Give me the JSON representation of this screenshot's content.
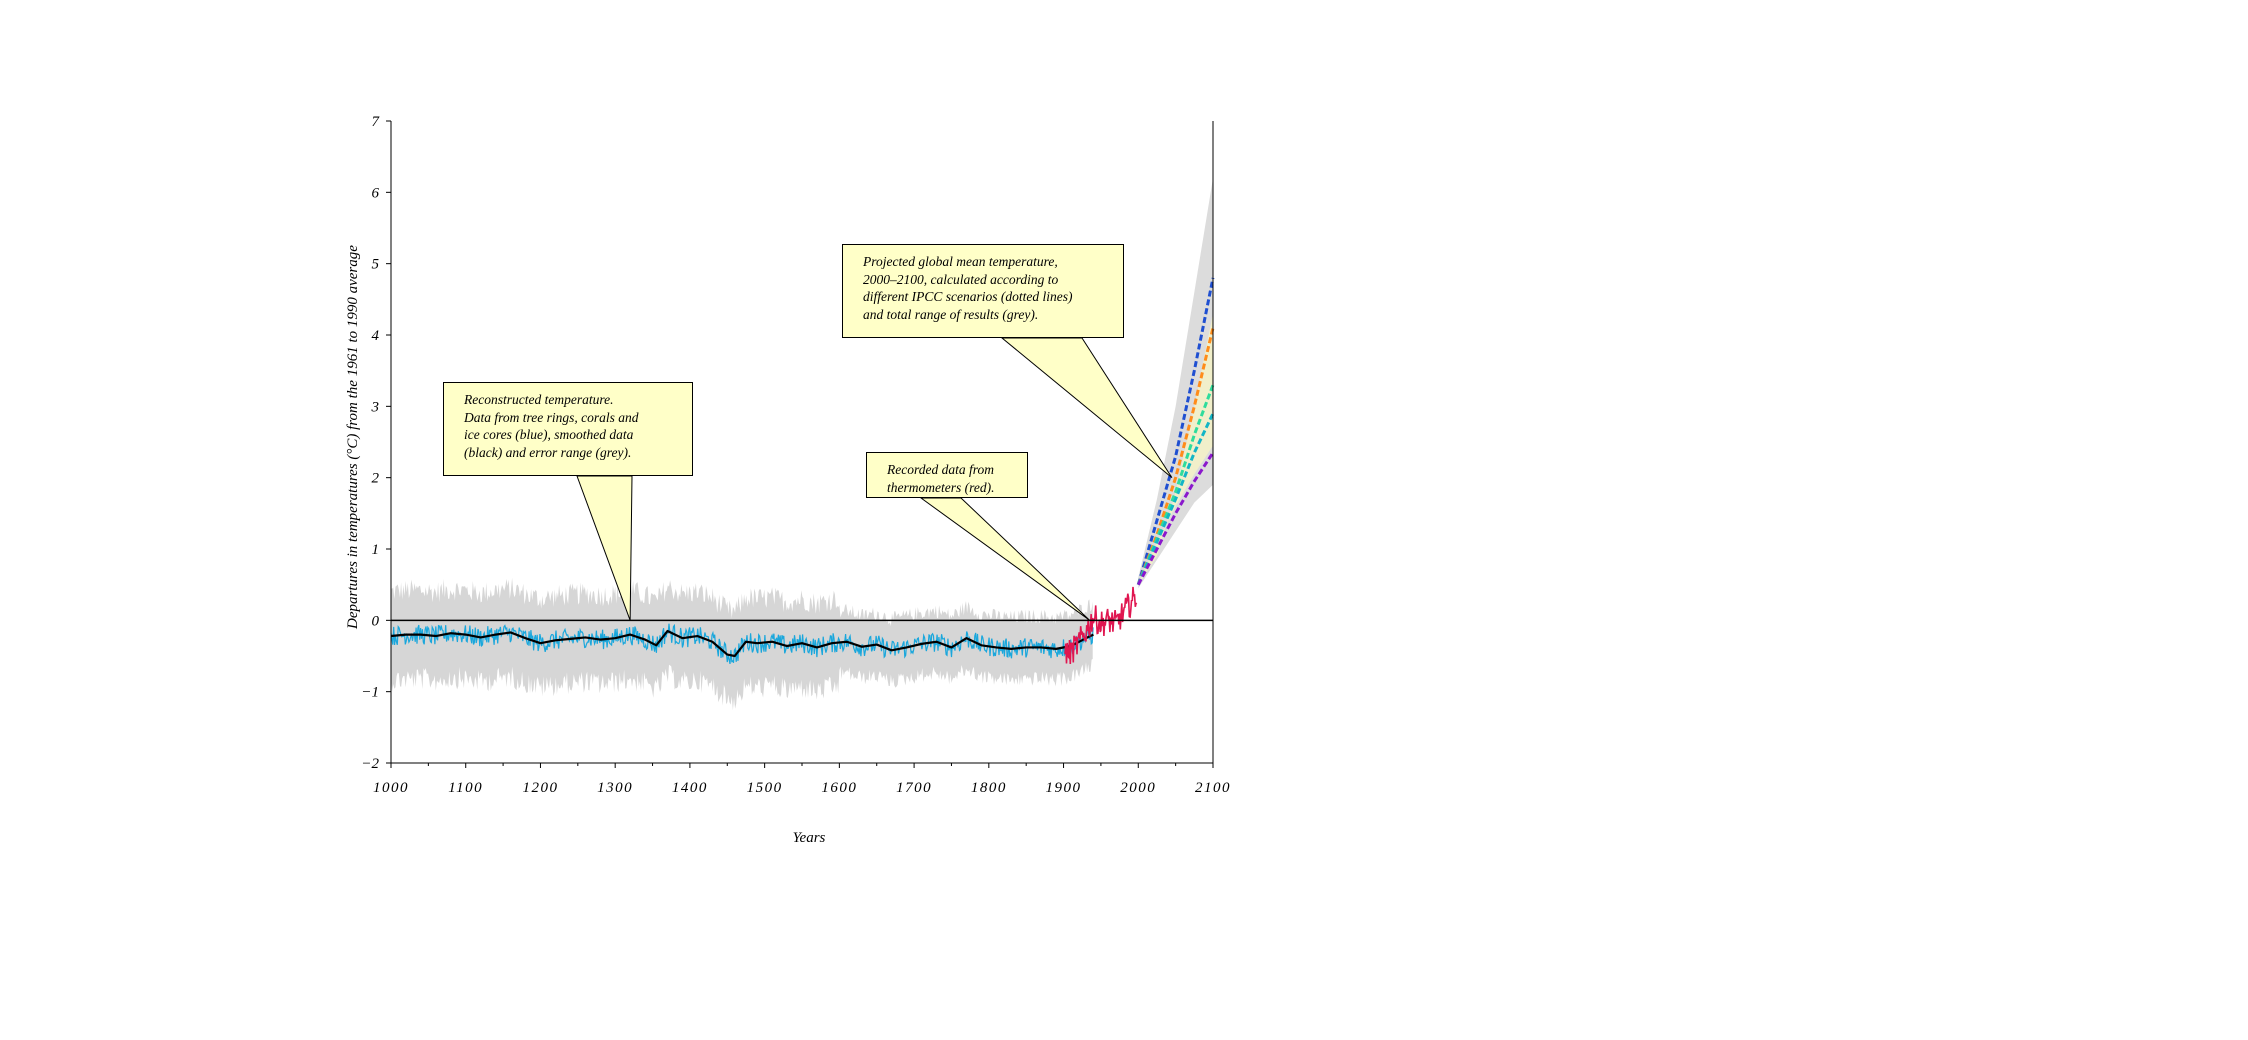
{
  "chart_data": {
    "type": "line",
    "xlabel": "Years",
    "ylabel": "Departures in temperatures (°C) from the 1961 to 1990 average",
    "xlim": [
      1000,
      2100
    ],
    "ylim": [
      -2,
      7
    ],
    "x_ticks": [
      "1000",
      "1100",
      "1200",
      "1300",
      "1400",
      "1500",
      "1600",
      "1700",
      "1800",
      "1900",
      "2000",
      "2100"
    ],
    "y_ticks": [
      "−2",
      "−1",
      "0",
      "1",
      "2",
      "3",
      "4",
      "5",
      "6",
      "7"
    ],
    "grid": false,
    "zero_line": true,
    "colors": {
      "reconstructed": "#1aa7dc",
      "smoothed": "#000000",
      "reconstruction_error": "#d6d6d6",
      "recorded": "#e01650",
      "projection_range": "#dcdcdc",
      "projection_inner": "#f3f1c8",
      "scenarios": [
        "#1f4fd1",
        "#ff8c1a",
        "#2edc9c",
        "#12b5c6",
        "#8a18cc"
      ]
    },
    "series": [
      {
        "role": "smoothed",
        "x": [
          1000,
          1020,
          1040,
          1060,
          1080,
          1100,
          1120,
          1140,
          1160,
          1180,
          1200,
          1220,
          1240,
          1260,
          1280,
          1300,
          1320,
          1340,
          1355,
          1370,
          1390,
          1410,
          1430,
          1450,
          1460,
          1475,
          1490,
          1510,
          1530,
          1550,
          1570,
          1590,
          1610,
          1630,
          1650,
          1670,
          1690,
          1710,
          1730,
          1750,
          1770,
          1790,
          1810,
          1830,
          1850,
          1870,
          1890,
          1910,
          1930,
          1940
        ],
        "y": [
          -0.22,
          -0.2,
          -0.2,
          -0.22,
          -0.18,
          -0.2,
          -0.24,
          -0.2,
          -0.17,
          -0.25,
          -0.32,
          -0.28,
          -0.26,
          -0.24,
          -0.27,
          -0.25,
          -0.2,
          -0.27,
          -0.35,
          -0.15,
          -0.25,
          -0.22,
          -0.3,
          -0.48,
          -0.5,
          -0.3,
          -0.32,
          -0.3,
          -0.36,
          -0.32,
          -0.38,
          -0.32,
          -0.3,
          -0.37,
          -0.34,
          -0.42,
          -0.38,
          -0.33,
          -0.3,
          -0.38,
          -0.25,
          -0.35,
          -0.38,
          -0.4,
          -0.38,
          -0.38,
          -0.4,
          -0.36,
          -0.25,
          -0.2
        ]
      },
      {
        "role": "recorded",
        "x": [
          1902,
          1910,
          1920,
          1930,
          1940,
          1950,
          1960,
          1970,
          1980,
          1990,
          1998
        ],
        "y": [
          -0.45,
          -0.45,
          -0.32,
          -0.15,
          0.05,
          -0.05,
          0.0,
          -0.05,
          0.1,
          0.25,
          0.35
        ]
      },
      {
        "role": "scenario",
        "x": [
          2000,
          2025,
          2050,
          2075,
          2100
        ],
        "y": [
          0.5,
          1.4,
          2.3,
          3.5,
          4.8
        ]
      },
      {
        "role": "scenario",
        "x": [
          2000,
          2025,
          2050,
          2075,
          2100
        ],
        "y": [
          0.5,
          1.2,
          2.0,
          3.0,
          4.1
        ]
      },
      {
        "role": "scenario",
        "x": [
          2000,
          2025,
          2050,
          2075,
          2100
        ],
        "y": [
          0.5,
          1.15,
          1.8,
          2.6,
          3.3
        ]
      },
      {
        "role": "scenario",
        "x": [
          2000,
          2025,
          2050,
          2075,
          2100
        ],
        "y": [
          0.5,
          1.1,
          1.7,
          2.35,
          2.9
        ]
      },
      {
        "role": "scenario",
        "x": [
          2000,
          2025,
          2050,
          2075,
          2100
        ],
        "y": [
          0.5,
          1.0,
          1.5,
          1.95,
          2.35
        ]
      }
    ],
    "projection_range": {
      "x": [
        2000,
        2025,
        2050,
        2075,
        2100
      ],
      "low": [
        0.45,
        0.85,
        1.25,
        1.65,
        1.9
      ],
      "high": [
        0.6,
        1.7,
        3.0,
        4.6,
        6.2
      ]
    },
    "annotations": [
      {
        "text_lines": [
          "Reconstructed temperature.",
          "Data from tree rings, corals and",
          "ice cores (blue), smoothed data",
          "(black) and error range (grey)."
        ],
        "points_to": {
          "x": 1320,
          "y": 0
        }
      },
      {
        "text_lines": [
          "Recorded data from",
          "thermometers (red)."
        ],
        "points_to": {
          "x": 1935,
          "y": 0
        }
      },
      {
        "text_lines": [
          "Projected global mean temperature,",
          "2000–2100, calculated according to",
          "different IPCC scenarios (dotted lines)",
          "and total range of results (grey)."
        ],
        "points_to": {
          "x": 2045,
          "y": 2.0
        }
      }
    ]
  }
}
